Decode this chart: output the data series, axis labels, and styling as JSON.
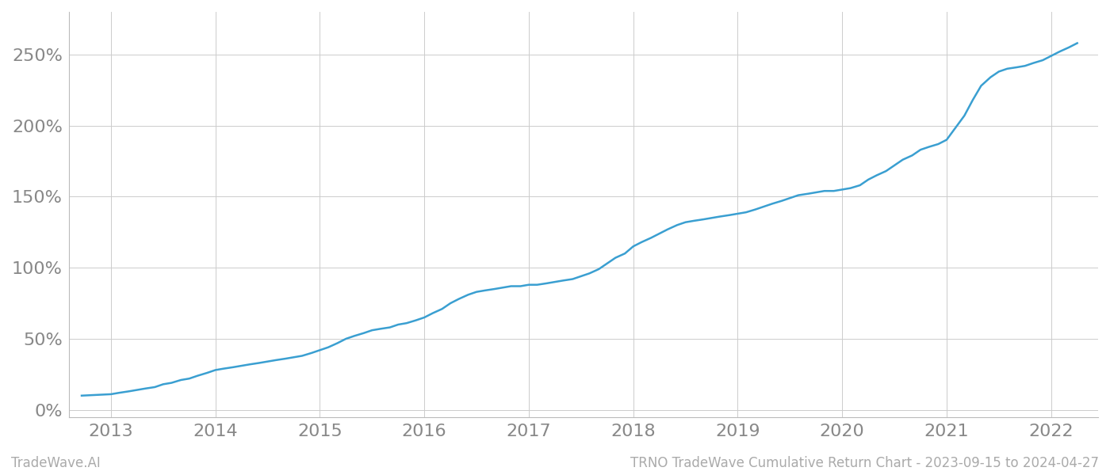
{
  "title": "TRNO TradeWave Cumulative Return Chart - 2023-09-15 to 2024-04-27",
  "watermark": "TradeWave.AI",
  "line_color": "#3a9fd1",
  "line_width": 1.8,
  "background_color": "#ffffff",
  "grid_color": "#cccccc",
  "x_years": [
    2013,
    2014,
    2015,
    2016,
    2017,
    2018,
    2019,
    2020,
    2021,
    2022
  ],
  "x_data": [
    2012.72,
    2013.0,
    2013.08,
    2013.17,
    2013.25,
    2013.33,
    2013.42,
    2013.5,
    2013.58,
    2013.67,
    2013.75,
    2013.83,
    2013.92,
    2014.0,
    2014.08,
    2014.17,
    2014.25,
    2014.33,
    2014.42,
    2014.5,
    2014.58,
    2014.67,
    2014.75,
    2014.83,
    2014.92,
    2015.0,
    2015.08,
    2015.17,
    2015.25,
    2015.33,
    2015.42,
    2015.5,
    2015.58,
    2015.67,
    2015.75,
    2015.83,
    2015.92,
    2016.0,
    2016.08,
    2016.17,
    2016.25,
    2016.33,
    2016.42,
    2016.5,
    2016.58,
    2016.67,
    2016.75,
    2016.83,
    2016.92,
    2017.0,
    2017.08,
    2017.17,
    2017.25,
    2017.33,
    2017.42,
    2017.5,
    2017.58,
    2017.67,
    2017.75,
    2017.83,
    2017.92,
    2018.0,
    2018.08,
    2018.17,
    2018.25,
    2018.33,
    2018.42,
    2018.5,
    2018.58,
    2018.67,
    2018.75,
    2018.83,
    2018.92,
    2019.0,
    2019.08,
    2019.17,
    2019.25,
    2019.33,
    2019.42,
    2019.5,
    2019.58,
    2019.67,
    2019.75,
    2019.83,
    2019.92,
    2020.0,
    2020.08,
    2020.17,
    2020.25,
    2020.33,
    2020.42,
    2020.5,
    2020.58,
    2020.67,
    2020.75,
    2020.83,
    2020.92,
    2021.0,
    2021.08,
    2021.17,
    2021.25,
    2021.33,
    2021.42,
    2021.5,
    2021.58,
    2021.67,
    2021.75,
    2021.83,
    2021.92,
    2022.0,
    2022.08,
    2022.17,
    2022.25
  ],
  "y_data": [
    10,
    11,
    12,
    13,
    14,
    15,
    16,
    18,
    19,
    21,
    22,
    24,
    26,
    28,
    29,
    30,
    31,
    32,
    33,
    34,
    35,
    36,
    37,
    38,
    40,
    42,
    44,
    47,
    50,
    52,
    54,
    56,
    57,
    58,
    60,
    61,
    63,
    65,
    68,
    71,
    75,
    78,
    81,
    83,
    84,
    85,
    86,
    87,
    87,
    88,
    88,
    89,
    90,
    91,
    92,
    94,
    96,
    99,
    103,
    107,
    110,
    115,
    118,
    121,
    124,
    127,
    130,
    132,
    133,
    134,
    135,
    136,
    137,
    138,
    139,
    141,
    143,
    145,
    147,
    149,
    151,
    152,
    153,
    154,
    154,
    155,
    156,
    158,
    162,
    165,
    168,
    172,
    176,
    179,
    183,
    185,
    187,
    190,
    198,
    207,
    218,
    228,
    234,
    238,
    240,
    241,
    242,
    244,
    246,
    249,
    252,
    255,
    258
  ],
  "ylim": [
    -5,
    280
  ],
  "yticks": [
    0,
    50,
    100,
    150,
    200,
    250
  ],
  "xlim": [
    2012.6,
    2022.45
  ],
  "tick_fontsize": 16,
  "watermark_fontsize": 12,
  "title_fontsize": 12,
  "spine_color": "#bbbbbb",
  "tick_color": "#888888"
}
